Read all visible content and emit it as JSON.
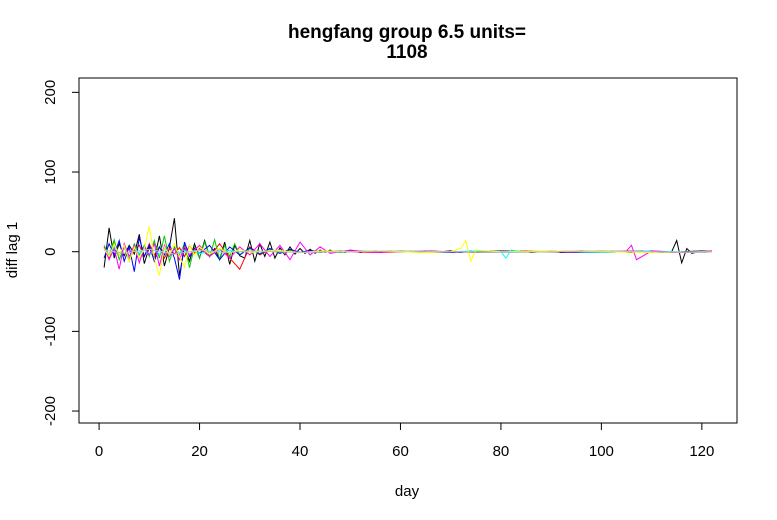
{
  "chart_data": {
    "type": "line",
    "title_line1": "hengfang group 6.5 units=",
    "title_line2": "1108",
    "xlabel": "day",
    "ylabel": "diff lag 1",
    "xlim": [
      -4,
      127
    ],
    "ylim": [
      -215,
      218
    ],
    "x_ticks": [
      0,
      20,
      40,
      60,
      80,
      100,
      120
    ],
    "y_ticks": [
      -200,
      -100,
      0,
      100,
      200
    ],
    "grid": false,
    "legend": "none",
    "colors": [
      "#000000",
      "#ff0000",
      "#00cd00",
      "#0000ff",
      "#00ffff",
      "#ff00ff",
      "#ffff00",
      "#bebebe"
    ],
    "series": [
      {
        "color": "#000000",
        "x": [
          1,
          2,
          3,
          4,
          5,
          6,
          7,
          8,
          9,
          10,
          11,
          12,
          13,
          14,
          15,
          16,
          17,
          18,
          19,
          20,
          21,
          22,
          23,
          24,
          25,
          26,
          27,
          28,
          29,
          30,
          31,
          32,
          33,
          34,
          35,
          36,
          37,
          38,
          39,
          40,
          41,
          42,
          43,
          44,
          45,
          46,
          47,
          48,
          49,
          50,
          52,
          54,
          56,
          58,
          60,
          62,
          64,
          66,
          68,
          70,
          72,
          74,
          76,
          78,
          80,
          82,
          84,
          86,
          88,
          90,
          92,
          94,
          96,
          98,
          100,
          102,
          104,
          106,
          108,
          110,
          112,
          114,
          115,
          116,
          117,
          118,
          120,
          122
        ],
        "y": [
          -20,
          30,
          -8,
          10,
          -5,
          8,
          -3,
          22,
          -15,
          6,
          -10,
          20,
          -18,
          5,
          42,
          -30,
          6,
          -12,
          10,
          -8,
          14,
          -6,
          4,
          -10,
          12,
          -16,
          8,
          -5,
          -8,
          14,
          -12,
          10,
          -6,
          12,
          -8,
          5,
          -4,
          6,
          -3,
          4,
          -2,
          3,
          -2,
          2,
          -1,
          2,
          -1,
          1,
          -1,
          2,
          -1,
          1,
          -1,
          1,
          0,
          1,
          -1,
          1,
          0,
          1,
          -1,
          1,
          0,
          1,
          -1,
          0,
          1,
          -1,
          0,
          1,
          -1,
          0,
          1,
          0,
          -1,
          1,
          0,
          -1,
          1,
          0,
          -1,
          0,
          14,
          -14,
          4,
          -2,
          1,
          0
        ]
      },
      {
        "color": "#ff0000",
        "x": [
          1,
          2,
          3,
          4,
          5,
          6,
          7,
          8,
          9,
          10,
          11,
          12,
          13,
          14,
          15,
          16,
          17,
          18,
          19,
          20,
          22,
          24,
          26,
          28,
          30,
          32,
          34,
          36,
          38,
          40,
          42,
          44,
          46,
          50,
          55,
          60,
          65,
          70,
          75,
          80,
          85,
          90,
          95,
          100,
          105,
          110,
          115,
          120,
          122
        ],
        "y": [
          5,
          -8,
          12,
          -4,
          6,
          -10,
          3,
          8,
          -6,
          10,
          -4,
          6,
          -8,
          4,
          -3,
          5,
          -6,
          8,
          -2,
          4,
          -6,
          10,
          -8,
          -22,
          6,
          -4,
          3,
          -2,
          2,
          -1,
          1,
          -1,
          1,
          0,
          -1,
          0,
          1,
          0,
          -1,
          0,
          1,
          0,
          -1,
          0,
          1,
          0,
          -1,
          0,
          1
        ]
      },
      {
        "color": "#00cd00",
        "x": [
          1,
          2,
          3,
          4,
          5,
          6,
          7,
          8,
          9,
          10,
          11,
          12,
          13,
          14,
          15,
          16,
          17,
          18,
          19,
          20,
          21,
          22,
          23,
          24,
          25,
          26,
          27,
          28,
          30,
          32,
          34,
          36,
          38,
          40,
          44,
          48,
          52,
          56,
          60,
          70,
          80,
          90,
          100,
          110,
          120,
          122
        ],
        "y": [
          8,
          -5,
          15,
          -10,
          6,
          -12,
          10,
          -4,
          8,
          -6,
          14,
          -8,
          20,
          -12,
          6,
          -4,
          10,
          -20,
          6,
          -8,
          12,
          -6,
          15,
          -10,
          8,
          -6,
          10,
          -4,
          4,
          -3,
          3,
          -2,
          2,
          -1,
          1,
          -1,
          1,
          0,
          1,
          0,
          -1,
          0,
          1,
          0,
          -1,
          0
        ]
      },
      {
        "color": "#0000ff",
        "x": [
          1,
          2,
          3,
          4,
          5,
          6,
          7,
          8,
          9,
          10,
          11,
          12,
          13,
          14,
          15,
          16,
          17,
          18,
          19,
          20,
          22,
          24,
          26,
          28,
          30,
          32,
          34,
          36,
          38,
          40,
          42,
          44,
          46,
          50,
          55,
          60,
          70,
          80,
          90,
          100,
          110,
          115,
          116,
          120,
          122
        ],
        "y": [
          -8,
          10,
          -4,
          14,
          -12,
          6,
          -25,
          18,
          -6,
          8,
          -12,
          6,
          -4,
          10,
          -8,
          -35,
          12,
          -6,
          4,
          -2,
          8,
          -10,
          6,
          -4,
          5,
          -3,
          4,
          -2,
          3,
          -1,
          2,
          -1,
          1,
          0,
          1,
          0,
          -1,
          1,
          0,
          -1,
          1,
          -1,
          0,
          1,
          0
        ]
      },
      {
        "color": "#00ffff",
        "x": [
          1,
          2,
          3,
          4,
          5,
          6,
          7,
          8,
          9,
          10,
          11,
          12,
          13,
          14,
          15,
          16,
          17,
          18,
          19,
          20,
          25,
          30,
          35,
          40,
          45,
          50,
          55,
          60,
          65,
          70,
          75,
          80,
          81,
          82,
          85,
          90,
          95,
          100,
          105,
          110,
          115,
          120,
          122
        ],
        "y": [
          3,
          -4,
          6,
          -3,
          5,
          -6,
          4,
          -2,
          3,
          -4,
          2,
          -3,
          4,
          -2,
          3,
          -1,
          2,
          -3,
          1,
          -2,
          2,
          -1,
          1,
          -1,
          1,
          0,
          1,
          0,
          -1,
          0,
          1,
          0,
          -8,
          2,
          0,
          1,
          0,
          -1,
          0,
          1,
          0,
          -1,
          0
        ]
      },
      {
        "color": "#ff00ff",
        "x": [
          1,
          2,
          3,
          4,
          5,
          6,
          7,
          8,
          9,
          10,
          11,
          12,
          13,
          14,
          15,
          16,
          17,
          18,
          20,
          22,
          24,
          26,
          28,
          30,
          32,
          34,
          36,
          38,
          40,
          42,
          44,
          46,
          50,
          55,
          60,
          70,
          80,
          90,
          100,
          105,
          106,
          107,
          110,
          115,
          120,
          122
        ],
        "y": [
          6,
          -10,
          4,
          -22,
          10,
          -6,
          8,
          -14,
          6,
          -4,
          10,
          -18,
          8,
          -6,
          4,
          -10,
          6,
          -4,
          8,
          -6,
          4,
          -8,
          6,
          -4,
          10,
          -6,
          8,
          -10,
          12,
          -4,
          6,
          -2,
          2,
          -1,
          1,
          0,
          -1,
          1,
          0,
          1,
          8,
          -10,
          1,
          -1,
          0,
          0
        ]
      },
      {
        "color": "#ffff00",
        "x": [
          1,
          2,
          3,
          4,
          5,
          6,
          7,
          8,
          9,
          10,
          11,
          12,
          13,
          14,
          15,
          16,
          17,
          18,
          19,
          20,
          22,
          24,
          26,
          28,
          30,
          35,
          40,
          45,
          50,
          55,
          60,
          65,
          70,
          72,
          73,
          74,
          75,
          80,
          90,
          100,
          110,
          120,
          122
        ],
        "y": [
          4,
          -6,
          10,
          -4,
          8,
          -12,
          6,
          -8,
          4,
          32,
          -8,
          -30,
          6,
          -4,
          10,
          -6,
          -20,
          8,
          -4,
          6,
          -3,
          4,
          -2,
          3,
          -1,
          2,
          -1,
          1,
          0,
          1,
          0,
          -1,
          0,
          4,
          14,
          -12,
          2,
          0,
          1,
          0,
          -1,
          0,
          0
        ]
      },
      {
        "color": "#bebebe",
        "x": [
          1,
          5,
          10,
          15,
          20,
          25,
          30,
          40,
          50,
          60,
          70,
          80,
          90,
          100,
          110,
          120,
          122
        ],
        "y": [
          2,
          -2,
          3,
          -3,
          2,
          -1,
          1,
          -1,
          0,
          1,
          0,
          -1,
          0,
          1,
          0,
          -1,
          0
        ]
      }
    ]
  }
}
